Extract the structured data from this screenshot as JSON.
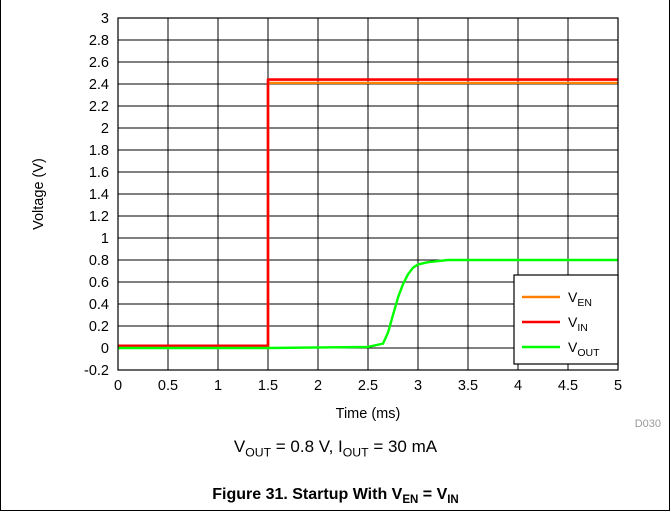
{
  "chart_data": {
    "type": "line",
    "xlabel": "Time (ms)",
    "ylabel": "Voltage (V)",
    "xlim": [
      0,
      5
    ],
    "ylim": [
      -0.2,
      3
    ],
    "xticks": [
      "0",
      "0.5",
      "1",
      "1.5",
      "2",
      "2.5",
      "3",
      "3.5",
      "4",
      "4.5",
      "5"
    ],
    "yticks": [
      "-0.2",
      "0",
      "0.2",
      "0.4",
      "0.6",
      "0.8",
      "1",
      "1.2",
      "1.4",
      "1.6",
      "1.8",
      "2",
      "2.2",
      "2.4",
      "2.6",
      "2.8",
      "3"
    ],
    "grid": true,
    "legend_position": "bottom-right",
    "series": [
      {
        "name_main": "V",
        "name_sub": "EN",
        "color": "#ff8000",
        "x": [
          0,
          1.49,
          1.5,
          1.5,
          5
        ],
        "y": [
          0.01,
          0.01,
          0.01,
          2.41,
          2.41
        ]
      },
      {
        "name_main": "V",
        "name_sub": "IN",
        "color": "#ff0000",
        "x": [
          0,
          1.49,
          1.5,
          1.5,
          5
        ],
        "y": [
          0.02,
          0.02,
          0.02,
          2.44,
          2.44
        ]
      },
      {
        "name_main": "V",
        "name_sub": "OUT",
        "color": "#00ff00",
        "x": [
          0,
          1.5,
          2.5,
          2.65,
          2.7,
          2.75,
          2.8,
          2.85,
          2.9,
          2.95,
          3.0,
          3.1,
          3.2,
          3.3,
          3.5,
          5
        ],
        "y": [
          0,
          0,
          0.01,
          0.04,
          0.14,
          0.3,
          0.46,
          0.58,
          0.67,
          0.73,
          0.76,
          0.78,
          0.79,
          0.8,
          0.8,
          0.8
        ]
      }
    ],
    "code": "D030"
  },
  "condition": {
    "vout_main": "V",
    "vout_sub": "OUT",
    "vout_val": " = 0.8 V, ",
    "iout_main": "I",
    "iout_sub": "OUT",
    "iout_val": " = 30 mA"
  },
  "caption": {
    "prefix": "Figure 31. Startup With V",
    "sub1": "EN",
    "mid": " = V",
    "sub2": "IN"
  }
}
